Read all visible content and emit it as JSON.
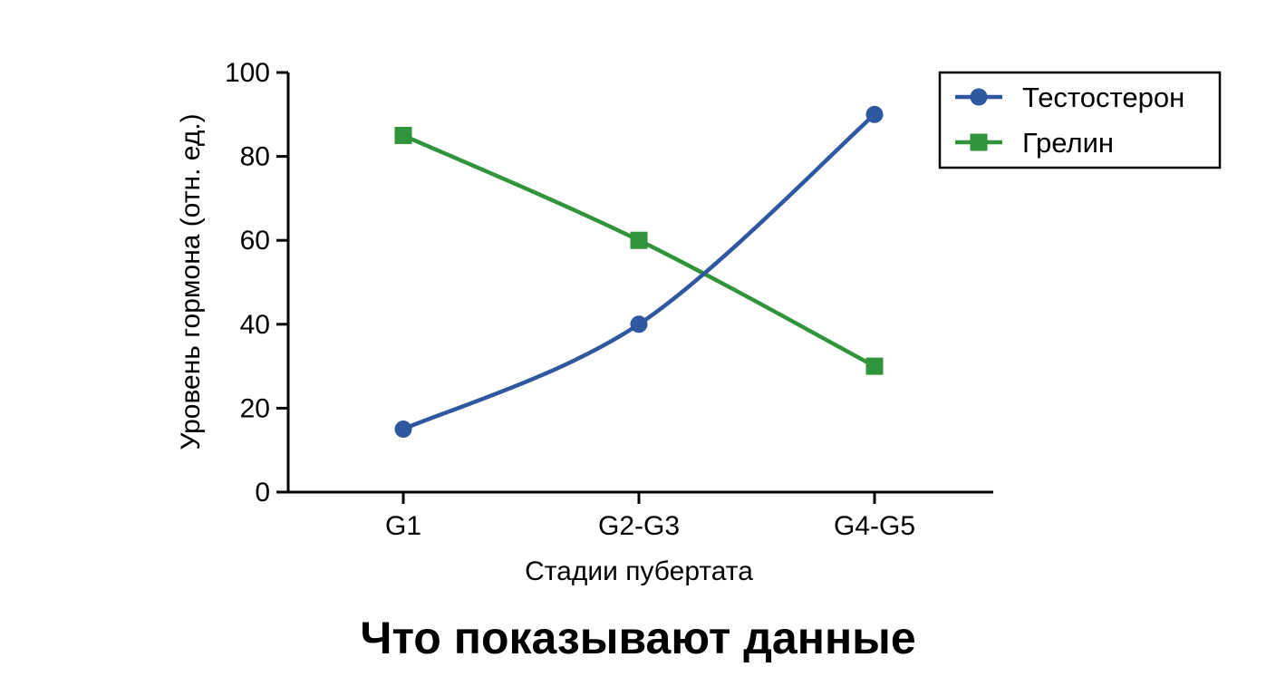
{
  "caption": "Что показывают данные",
  "chart_data": {
    "type": "line",
    "xlabel": "Стадии пубертата",
    "ylabel": "Уровень гормона (отн. ед.)",
    "categories": [
      "G1",
      "G2-G3",
      "G4-G5"
    ],
    "ylim": [
      0,
      100
    ],
    "yticks": [
      0,
      20,
      40,
      60,
      80,
      100
    ],
    "grid": false,
    "legend_position": "top-right",
    "series": [
      {
        "name": "Тестостерон",
        "values": [
          15,
          40,
          90
        ],
        "color": "#2e58a0",
        "marker": "circle"
      },
      {
        "name": "Грелин",
        "values": [
          85,
          60,
          30
        ],
        "color": "#30953a",
        "marker": "square"
      }
    ]
  }
}
